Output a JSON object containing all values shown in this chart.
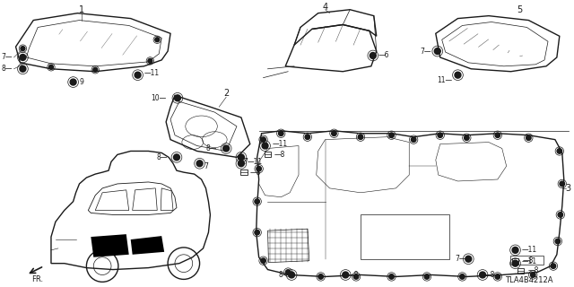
{
  "bg_color": "#ffffff",
  "diagram_id": "TLA4B4212A",
  "line_color": "#1a1a1a",
  "gray": "#444444",
  "figsize": [
    6.4,
    3.2
  ],
  "dpi": 100
}
